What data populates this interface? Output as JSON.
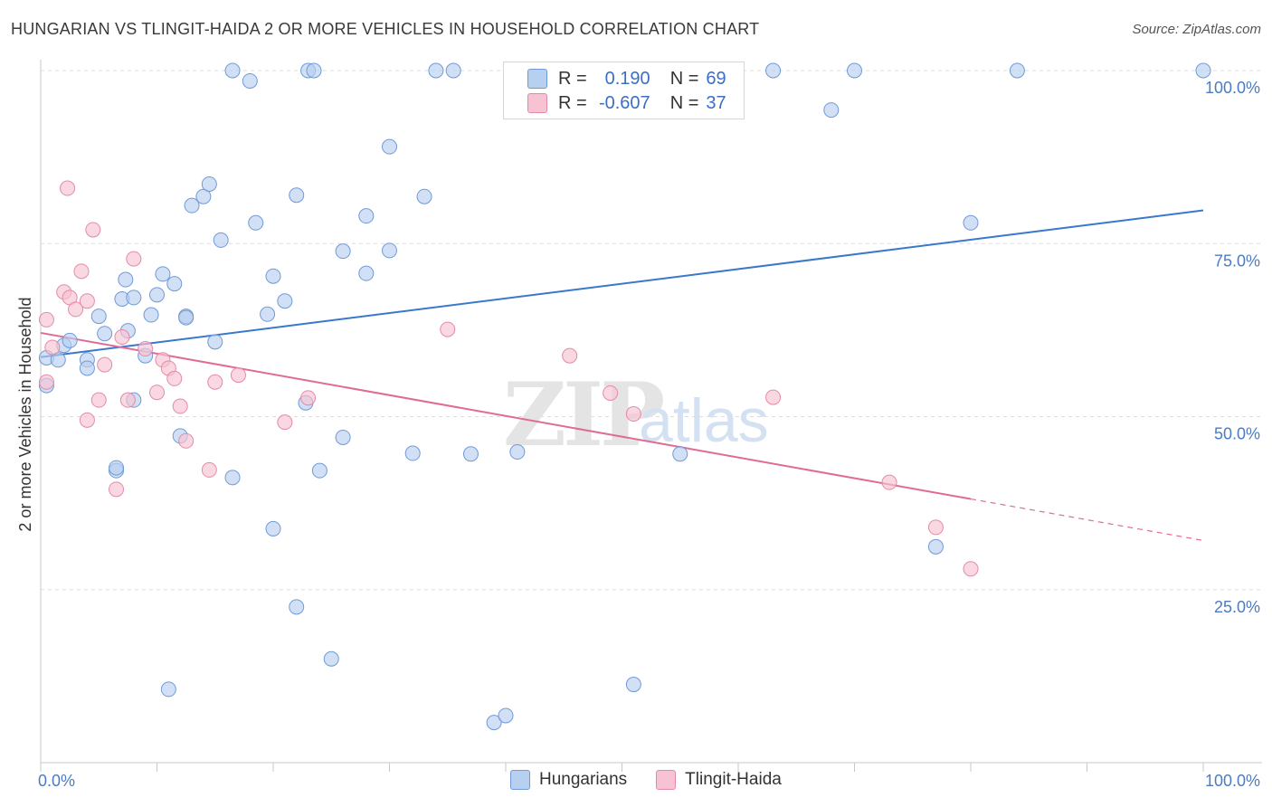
{
  "title": "HUNGARIAN VS TLINGIT-HAIDA 2 OR MORE VEHICLES IN HOUSEHOLD CORRELATION CHART",
  "source": "Source: ZipAtlas.com",
  "watermark": {
    "zip": "ZIP",
    "atlas": "atlas"
  },
  "legend": {
    "hungarians": {
      "r_label": "R =",
      "r_value": "0.190",
      "n_label": "N =",
      "n_value": "69"
    },
    "tlingit": {
      "r_label": "R =",
      "r_value": "-0.607",
      "n_label": "N =",
      "n_value": "37"
    }
  },
  "bottom_legend": {
    "hungarians": "Hungarians",
    "tlingit": "Tlingit-Haida"
  },
  "colors": {
    "blue_fill": "#b8d0f0",
    "blue_stroke": "#6f9ad8",
    "blue_line": "#3a78cc",
    "pink_fill": "#f7c3d3",
    "pink_stroke": "#e48aa8",
    "pink_line": "#e06c95",
    "axis_label": "#4a7cc4"
  },
  "chart_data": {
    "type": "scatter",
    "title": "HUNGARIAN VS TLINGIT-HAIDA 2 OR MORE VEHICLES IN HOUSEHOLD CORRELATION CHART",
    "xlabel": "",
    "ylabel": "2 or more Vehicles in Household",
    "xlim": [
      0,
      100
    ],
    "ylim": [
      0,
      100
    ],
    "x_tick_labels": [
      "0.0%",
      "100.0%"
    ],
    "y_tick_labels": [
      {
        "value": 100,
        "label": "100.0%"
      },
      {
        "value": 75,
        "label": "75.0%"
      },
      {
        "value": 50,
        "label": "50.0%"
      },
      {
        "value": 25,
        "label": "25.0%"
      }
    ],
    "series": [
      {
        "name": "Hungarians",
        "r": 0.19,
        "n": 69,
        "trend": {
          "x0": 0,
          "y0": 58.6,
          "x1": 100,
          "y1": 79.8,
          "dashed_from": null
        },
        "points": [
          [
            0.5,
            58.5
          ],
          [
            0.5,
            54.5
          ],
          [
            1.5,
            58.2
          ],
          [
            2,
            60.3
          ],
          [
            2.5,
            61
          ],
          [
            4,
            58.2
          ],
          [
            4,
            57
          ],
          [
            5,
            64.5
          ],
          [
            5.5,
            62
          ],
          [
            6.5,
            42.2
          ],
          [
            6.5,
            42.6
          ],
          [
            7.5,
            62.4
          ],
          [
            7,
            67
          ],
          [
            7.3,
            69.8
          ],
          [
            8,
            67.2
          ],
          [
            8,
            52.4
          ],
          [
            9,
            58.8
          ],
          [
            9.5,
            64.7
          ],
          [
            10,
            67.6
          ],
          [
            10.5,
            70.6
          ],
          [
            11.5,
            69.2
          ],
          [
            11,
            10.6
          ],
          [
            12,
            47.2
          ],
          [
            12.5,
            64.5
          ],
          [
            12.5,
            64.3
          ],
          [
            13,
            80.5
          ],
          [
            14,
            81.8
          ],
          [
            14.5,
            83.6
          ],
          [
            15,
            60.8
          ],
          [
            15.5,
            75.5
          ],
          [
            16.5,
            41.2
          ],
          [
            16.5,
            100
          ],
          [
            18,
            98.5
          ],
          [
            18.5,
            78
          ],
          [
            19.5,
            64.8
          ],
          [
            20,
            70.3
          ],
          [
            20,
            33.8
          ],
          [
            21,
            66.7
          ],
          [
            22,
            22.5
          ],
          [
            22,
            82
          ],
          [
            22.8,
            52
          ],
          [
            23,
            100
          ],
          [
            23.5,
            100
          ],
          [
            24,
            42.2
          ],
          [
            25,
            15
          ],
          [
            26,
            73.9
          ],
          [
            26,
            47
          ],
          [
            28,
            79
          ],
          [
            28,
            70.7
          ],
          [
            30,
            74
          ],
          [
            30,
            89
          ],
          [
            32,
            44.7
          ],
          [
            33,
            81.8
          ],
          [
            34,
            100
          ],
          [
            35.5,
            100
          ],
          [
            37,
            44.6
          ],
          [
            39,
            5.8
          ],
          [
            40,
            6.8
          ],
          [
            41,
            44.9
          ],
          [
            51,
            11.3
          ],
          [
            55,
            44.6
          ],
          [
            57,
            100
          ],
          [
            63,
            100
          ],
          [
            68,
            94.3
          ],
          [
            70,
            100
          ],
          [
            77,
            31.2
          ],
          [
            80,
            78
          ],
          [
            84,
            100
          ],
          [
            100,
            100
          ]
        ]
      },
      {
        "name": "Tlingit-Haida",
        "r": -0.607,
        "n": 37,
        "trend": {
          "x0": 0,
          "y0": 62.1,
          "x1": 100,
          "y1": 32.1,
          "dashed_from": 80
        },
        "points": [
          [
            0.5,
            55
          ],
          [
            0.5,
            64
          ],
          [
            1,
            60
          ],
          [
            2,
            68
          ],
          [
            2.3,
            83
          ],
          [
            2.5,
            67.2
          ],
          [
            3,
            65.5
          ],
          [
            3.5,
            71
          ],
          [
            4,
            49.5
          ],
          [
            4,
            66.7
          ],
          [
            4.5,
            77
          ],
          [
            5,
            52.4
          ],
          [
            5.5,
            57.5
          ],
          [
            6.5,
            39.5
          ],
          [
            7,
            61.5
          ],
          [
            7.5,
            52.4
          ],
          [
            8,
            72.8
          ],
          [
            9,
            59.8
          ],
          [
            10,
            53.5
          ],
          [
            10.5,
            58.2
          ],
          [
            11,
            57
          ],
          [
            11.5,
            55.5
          ],
          [
            12,
            51.5
          ],
          [
            12.5,
            46.5
          ],
          [
            14.5,
            42.3
          ],
          [
            15,
            55
          ],
          [
            17,
            56
          ],
          [
            21,
            49.2
          ],
          [
            23,
            52.7
          ],
          [
            35,
            62.6
          ],
          [
            45.5,
            58.8
          ],
          [
            49,
            53.4
          ],
          [
            51,
            50.4
          ],
          [
            63,
            52.8
          ],
          [
            73,
            40.5
          ],
          [
            77,
            34
          ],
          [
            80,
            28
          ]
        ]
      }
    ]
  }
}
